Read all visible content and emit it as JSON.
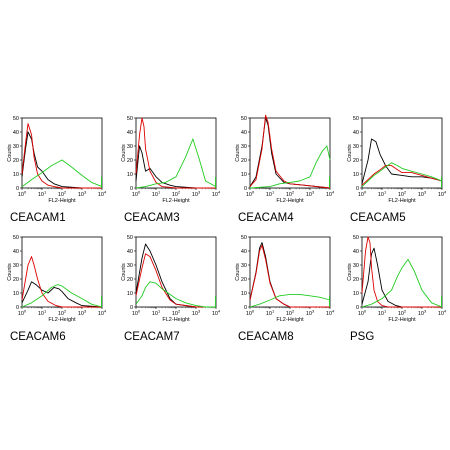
{
  "chart_data": [
    {
      "type": "line",
      "title": "CEACAM1",
      "xlabel": "FL2-Height",
      "ylabel": "Counts",
      "xscale": "log",
      "xlim": [
        1,
        10000
      ],
      "ylim": [
        0,
        50
      ],
      "xticks": [
        "10^0",
        "10^1",
        "10^2",
        "10^3",
        "10^4"
      ],
      "yticks": [
        "0",
        "10",
        "20",
        "30",
        "40",
        "50"
      ],
      "series": [
        {
          "color": "#000000",
          "x": [
            1,
            1.5,
            2,
            3,
            4,
            6,
            10,
            20,
            40,
            100,
            1000,
            10000
          ],
          "y": [
            8,
            28,
            40,
            35,
            25,
            15,
            12,
            6,
            3,
            1,
            0,
            0
          ]
        },
        {
          "color": "#dd0000",
          "x": [
            1,
            1.5,
            2,
            3,
            4,
            6,
            10,
            20,
            40,
            100,
            1000,
            10000
          ],
          "y": [
            10,
            32,
            46,
            38,
            22,
            10,
            5,
            2,
            1,
            0,
            0,
            0
          ]
        },
        {
          "color": "#22cc22",
          "x": [
            1,
            2,
            3,
            10,
            30,
            100,
            300,
            1000,
            3000,
            10000
          ],
          "y": [
            1,
            4,
            6,
            11,
            16,
            20,
            15,
            9,
            4,
            1
          ]
        }
      ]
    },
    {
      "type": "line",
      "title": "CEACAM3",
      "xlabel": "FL2-Height",
      "ylabel": "Counts",
      "xscale": "log",
      "xlim": [
        1,
        10000
      ],
      "ylim": [
        0,
        50
      ],
      "xticks": [
        "10^0",
        "10^1",
        "10^2",
        "10^3",
        "10^4"
      ],
      "yticks": [
        "0",
        "10",
        "20",
        "30",
        "40",
        "50"
      ],
      "series": [
        {
          "color": "#000000",
          "x": [
            1,
            1.5,
            2,
            3,
            5,
            10,
            20,
            50,
            100,
            1000,
            10000
          ],
          "y": [
            5,
            30,
            25,
            12,
            14,
            8,
            4,
            2,
            1,
            0,
            0
          ]
        },
        {
          "color": "#dd0000",
          "x": [
            1,
            1.5,
            2,
            2.5,
            3,
            5,
            10,
            20,
            100,
            10000
          ],
          "y": [
            10,
            38,
            50,
            44,
            28,
            12,
            4,
            1,
            0,
            0
          ]
        },
        {
          "color": "#22cc22",
          "x": [
            1,
            3,
            10,
            30,
            100,
            300,
            700,
            1500,
            3000,
            10000
          ],
          "y": [
            0,
            1,
            3,
            4,
            8,
            22,
            35,
            20,
            5,
            1
          ]
        }
      ]
    },
    {
      "type": "line",
      "title": "CEACAM4",
      "xlabel": "FL2-Height",
      "ylabel": "Counts",
      "xscale": "log",
      "xlim": [
        1,
        10000
      ],
      "ylim": [
        0,
        50
      ],
      "xticks": [
        "10^0",
        "10^1",
        "10^2",
        "10^3",
        "10^4"
      ],
      "yticks": [
        "0",
        "10",
        "20",
        "30",
        "40",
        "50"
      ],
      "series": [
        {
          "color": "#000000",
          "x": [
            1,
            2,
            4,
            6,
            8,
            12,
            20,
            50,
            100,
            500,
            10000
          ],
          "y": [
            1,
            8,
            30,
            50,
            45,
            25,
            10,
            4,
            3,
            2,
            0
          ]
        },
        {
          "color": "#dd0000",
          "x": [
            1,
            2,
            4,
            6,
            8,
            12,
            20,
            50,
            100,
            500,
            10000
          ],
          "y": [
            1,
            6,
            28,
            52,
            47,
            28,
            12,
            5,
            3,
            2,
            0
          ]
        },
        {
          "color": "#22cc22",
          "x": [
            1,
            10,
            30,
            100,
            300,
            1000,
            2000,
            4000,
            7000,
            10000
          ],
          "y": [
            0,
            1,
            3,
            4,
            5,
            8,
            18,
            26,
            30,
            20
          ]
        }
      ]
    },
    {
      "type": "line",
      "title": "CEACAM5",
      "xlabel": "FL2-Height",
      "ylabel": "Counts",
      "xscale": "log",
      "xlim": [
        1,
        10000
      ],
      "ylim": [
        0,
        50
      ],
      "xticks": [
        "10^0",
        "10^1",
        "10^2",
        "10^3",
        "10^4"
      ],
      "yticks": [
        "0",
        "10",
        "20",
        "30",
        "40",
        "50"
      ],
      "series": [
        {
          "color": "#000000",
          "x": [
            1,
            2,
            3,
            5,
            8,
            15,
            30,
            100,
            300,
            1000,
            3000,
            10000
          ],
          "y": [
            3,
            20,
            35,
            33,
            24,
            16,
            10,
            9,
            8,
            8,
            7,
            5
          ]
        },
        {
          "color": "#dd0000",
          "x": [
            1,
            2,
            4,
            8,
            15,
            30,
            60,
            100,
            300,
            1000,
            3000,
            10000
          ],
          "y": [
            2,
            6,
            10,
            13,
            16,
            16,
            13,
            11,
            11,
            9,
            7,
            5
          ]
        },
        {
          "color": "#22cc22",
          "x": [
            1,
            2,
            4,
            8,
            15,
            30,
            60,
            100,
            300,
            1000,
            3000,
            10000
          ],
          "y": [
            1,
            5,
            9,
            12,
            15,
            18,
            16,
            14,
            12,
            10,
            8,
            5
          ]
        }
      ]
    },
    {
      "type": "line",
      "title": "CEACAM6",
      "xlabel": "FL2-Height",
      "ylabel": "Counts",
      "xscale": "log",
      "xlim": [
        1,
        10000
      ],
      "ylim": [
        0,
        50
      ],
      "xticks": [
        "10^0",
        "10^1",
        "10^2",
        "10^3",
        "10^4"
      ],
      "yticks": [
        "0",
        "10",
        "20",
        "30",
        "40",
        "50"
      ],
      "series": [
        {
          "color": "#000000",
          "x": [
            1,
            2,
            3,
            5,
            10,
            20,
            40,
            70,
            100,
            200,
            500,
            1000,
            10000
          ],
          "y": [
            3,
            12,
            18,
            16,
            12,
            10,
            14,
            13,
            11,
            6,
            3,
            1,
            0
          ]
        },
        {
          "color": "#dd0000",
          "x": [
            1,
            2,
            3,
            4,
            6,
            10,
            20,
            50,
            100,
            10000
          ],
          "y": [
            5,
            30,
            36,
            30,
            20,
            10,
            4,
            1,
            0,
            0
          ]
        },
        {
          "color": "#22cc22",
          "x": [
            1,
            3,
            10,
            30,
            60,
            100,
            300,
            1000,
            3000,
            10000
          ],
          "y": [
            0,
            3,
            8,
            14,
            16,
            15,
            10,
            6,
            2,
            0
          ]
        }
      ]
    },
    {
      "type": "line",
      "title": "CEACAM7",
      "xlabel": "FL2-Height",
      "ylabel": "Counts",
      "xscale": "log",
      "xlim": [
        1,
        10000
      ],
      "ylim": [
        0,
        50
      ],
      "xticks": [
        "10^0",
        "10^1",
        "10^2",
        "10^3",
        "10^4"
      ],
      "yticks": [
        "0",
        "10",
        "20",
        "30",
        "40",
        "50"
      ],
      "series": [
        {
          "color": "#000000",
          "x": [
            1,
            2,
            3,
            5,
            10,
            20,
            50,
            100,
            1000,
            10000
          ],
          "y": [
            10,
            35,
            45,
            40,
            30,
            18,
            6,
            2,
            0,
            0
          ]
        },
        {
          "color": "#dd0000",
          "x": [
            1,
            2,
            3,
            5,
            10,
            20,
            50,
            100,
            1000,
            10000
          ],
          "y": [
            8,
            28,
            38,
            36,
            26,
            14,
            5,
            2,
            0,
            0
          ]
        },
        {
          "color": "#22cc22",
          "x": [
            1,
            2,
            3,
            5,
            10,
            20,
            50,
            100,
            300,
            1000,
            3000,
            10000
          ],
          "y": [
            2,
            8,
            14,
            18,
            17,
            13,
            9,
            6,
            3,
            1,
            0,
            0
          ]
        }
      ]
    },
    {
      "type": "line",
      "title": "CEACAM8",
      "xlabel": "FL2-Height",
      "ylabel": "Counts",
      "xscale": "log",
      "xlim": [
        1,
        10000
      ],
      "ylim": [
        0,
        50
      ],
      "xticks": [
        "10^0",
        "10^1",
        "10^2",
        "10^3",
        "10^4"
      ],
      "yticks": [
        "0",
        "10",
        "20",
        "30",
        "40",
        "50"
      ],
      "series": [
        {
          "color": "#000000",
          "x": [
            1,
            2,
            3,
            4,
            6,
            10,
            20,
            50,
            100,
            10000
          ],
          "y": [
            5,
            25,
            42,
            46,
            36,
            18,
            6,
            2,
            0,
            0
          ]
        },
        {
          "color": "#dd0000",
          "x": [
            1,
            2,
            3,
            4,
            6,
            10,
            20,
            50,
            100,
            10000
          ],
          "y": [
            5,
            24,
            40,
            44,
            34,
            17,
            6,
            2,
            0,
            0
          ]
        },
        {
          "color": "#22cc22",
          "x": [
            1,
            3,
            10,
            30,
            100,
            300,
            1000,
            3000,
            10000
          ],
          "y": [
            0,
            2,
            5,
            8,
            9,
            9,
            8,
            7,
            5
          ]
        }
      ]
    },
    {
      "type": "line",
      "title": "PSG",
      "xlabel": "FL2-Height",
      "ylabel": "Counts",
      "xscale": "log",
      "xlim": [
        1,
        10000
      ],
      "ylim": [
        0,
        50
      ],
      "xticks": [
        "10^0",
        "10^1",
        "10^2",
        "10^3",
        "10^4"
      ],
      "yticks": [
        "0",
        "10",
        "20",
        "30",
        "40",
        "50"
      ],
      "series": [
        {
          "color": "#000000",
          "x": [
            1,
            2,
            3,
            4,
            6,
            10,
            20,
            50,
            100,
            10000
          ],
          "y": [
            2,
            18,
            38,
            42,
            30,
            12,
            4,
            1,
            0,
            0
          ]
        },
        {
          "color": "#dd0000",
          "x": [
            1,
            1.5,
            2,
            2.5,
            3,
            4,
            6,
            10,
            20,
            10000
          ],
          "y": [
            10,
            40,
            50,
            46,
            28,
            12,
            4,
            1,
            0,
            0
          ]
        },
        {
          "color": "#22cc22",
          "x": [
            1,
            3,
            10,
            30,
            60,
            100,
            200,
            400,
            1000,
            3000,
            10000
          ],
          "y": [
            0,
            2,
            6,
            12,
            22,
            28,
            34,
            26,
            12,
            3,
            0
          ]
        }
      ]
    }
  ]
}
